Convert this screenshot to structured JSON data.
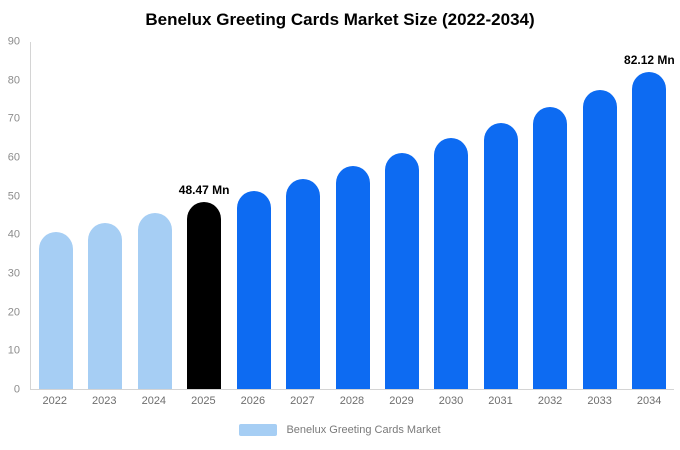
{
  "title": "Benelux Greeting Cards Market Size (2022-2034)",
  "colors": {
    "historical": "#a6cef4",
    "current": "#000000",
    "forecast": "#0d6bf2",
    "axis_line": "#d4d4d4",
    "tick_text": "#8c8c8c"
  },
  "legend": {
    "label": "Benelux Greeting Cards Market",
    "swatch_color": "#a6cef4"
  },
  "chart_data": {
    "type": "bar",
    "title": "Benelux Greeting Cards Market Size (2022-2034)",
    "categories": [
      "2022",
      "2023",
      "2024",
      "2025",
      "2026",
      "2027",
      "2028",
      "2029",
      "2030",
      "2031",
      "2032",
      "2033",
      "2034"
    ],
    "values": [
      40.6,
      43.1,
      45.7,
      48.47,
      51.4,
      54.5,
      57.8,
      61.3,
      65.0,
      68.9,
      73.1,
      77.5,
      82.12
    ],
    "bar_roles": [
      "historical",
      "historical",
      "historical",
      "current",
      "forecast",
      "forecast",
      "forecast",
      "forecast",
      "forecast",
      "forecast",
      "forecast",
      "forecast",
      "forecast"
    ],
    "annotations": [
      {
        "index": 3,
        "text": "48.47 Mn"
      },
      {
        "index": 12,
        "text": "82.12 Mn"
      }
    ],
    "xlabel": "",
    "ylabel": "",
    "ylim": [
      0,
      90
    ],
    "yticks": [
      0,
      10,
      20,
      30,
      40,
      50,
      60,
      70,
      80,
      90
    ],
    "grid": false,
    "legend_position": "bottom",
    "unit": "Mn"
  }
}
